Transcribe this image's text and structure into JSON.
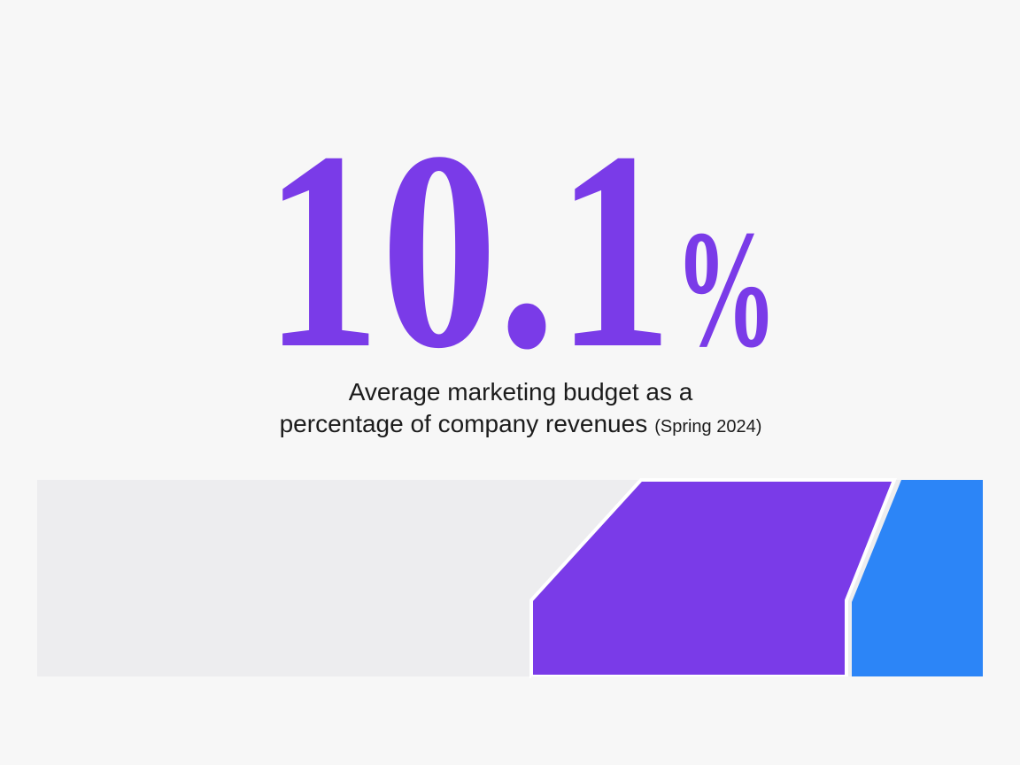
{
  "stat": {
    "value": "10.1",
    "unit": "%"
  },
  "caption": {
    "line1": "Average marketing budget as a",
    "line2": "percentage of company revenues",
    "note": "(Spring 2024)"
  }
}
